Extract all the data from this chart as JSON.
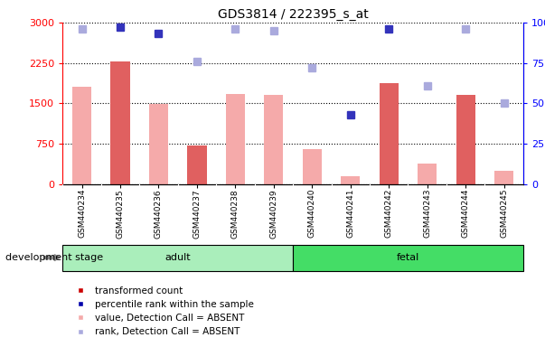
{
  "title": "GDS3814 / 222395_s_at",
  "samples": [
    "GSM440234",
    "GSM440235",
    "GSM440236",
    "GSM440237",
    "GSM440238",
    "GSM440239",
    "GSM440240",
    "GSM440241",
    "GSM440242",
    "GSM440243",
    "GSM440244",
    "GSM440245"
  ],
  "bar_values": [
    1800,
    2270,
    1480,
    720,
    1680,
    1650,
    650,
    145,
    1870,
    380,
    1660,
    240
  ],
  "rank_values": [
    96,
    97,
    93,
    76,
    96,
    95,
    72,
    43,
    96,
    61,
    96,
    50
  ],
  "bar_absent": [
    true,
    false,
    true,
    false,
    true,
    true,
    true,
    true,
    false,
    true,
    false,
    true
  ],
  "rank_absent": [
    true,
    false,
    false,
    true,
    true,
    true,
    true,
    false,
    false,
    true,
    true,
    true
  ],
  "groups": [
    {
      "label": "adult",
      "start": 0,
      "end": 5,
      "color": "#AAEEBB"
    },
    {
      "label": "fetal",
      "start": 6,
      "end": 11,
      "color": "#44DD66"
    }
  ],
  "ylim_left": [
    0,
    3000
  ],
  "ylim_right": [
    0,
    100
  ],
  "yticks_left": [
    0,
    750,
    1500,
    2250,
    3000
  ],
  "yticks_right": [
    0,
    25,
    50,
    75,
    100
  ],
  "ytick_labels_left": [
    "0",
    "750",
    "1500",
    "2250",
    "3000"
  ],
  "ytick_labels_right": [
    "0",
    "25",
    "50",
    "75",
    "100%"
  ],
  "color_bar_present": "#E06060",
  "color_bar_absent": "#F5AAAA",
  "color_rank_present": "#3333BB",
  "color_rank_absent": "#AAAADD",
  "bar_width": 0.5,
  "rank_marker_size": 6,
  "background_color": "#FFFFFF",
  "label_fontsize": 7,
  "title_fontsize": 10,
  "dev_stage_label": "development stage",
  "tick_area_color": "#CCCCCC",
  "legend_colors": [
    "#CC0000",
    "#0000AA",
    "#F5AAAA",
    "#AAAADD"
  ],
  "legend_labels": [
    "transformed count",
    "percentile rank within the sample",
    "value, Detection Call = ABSENT",
    "rank, Detection Call = ABSENT"
  ]
}
